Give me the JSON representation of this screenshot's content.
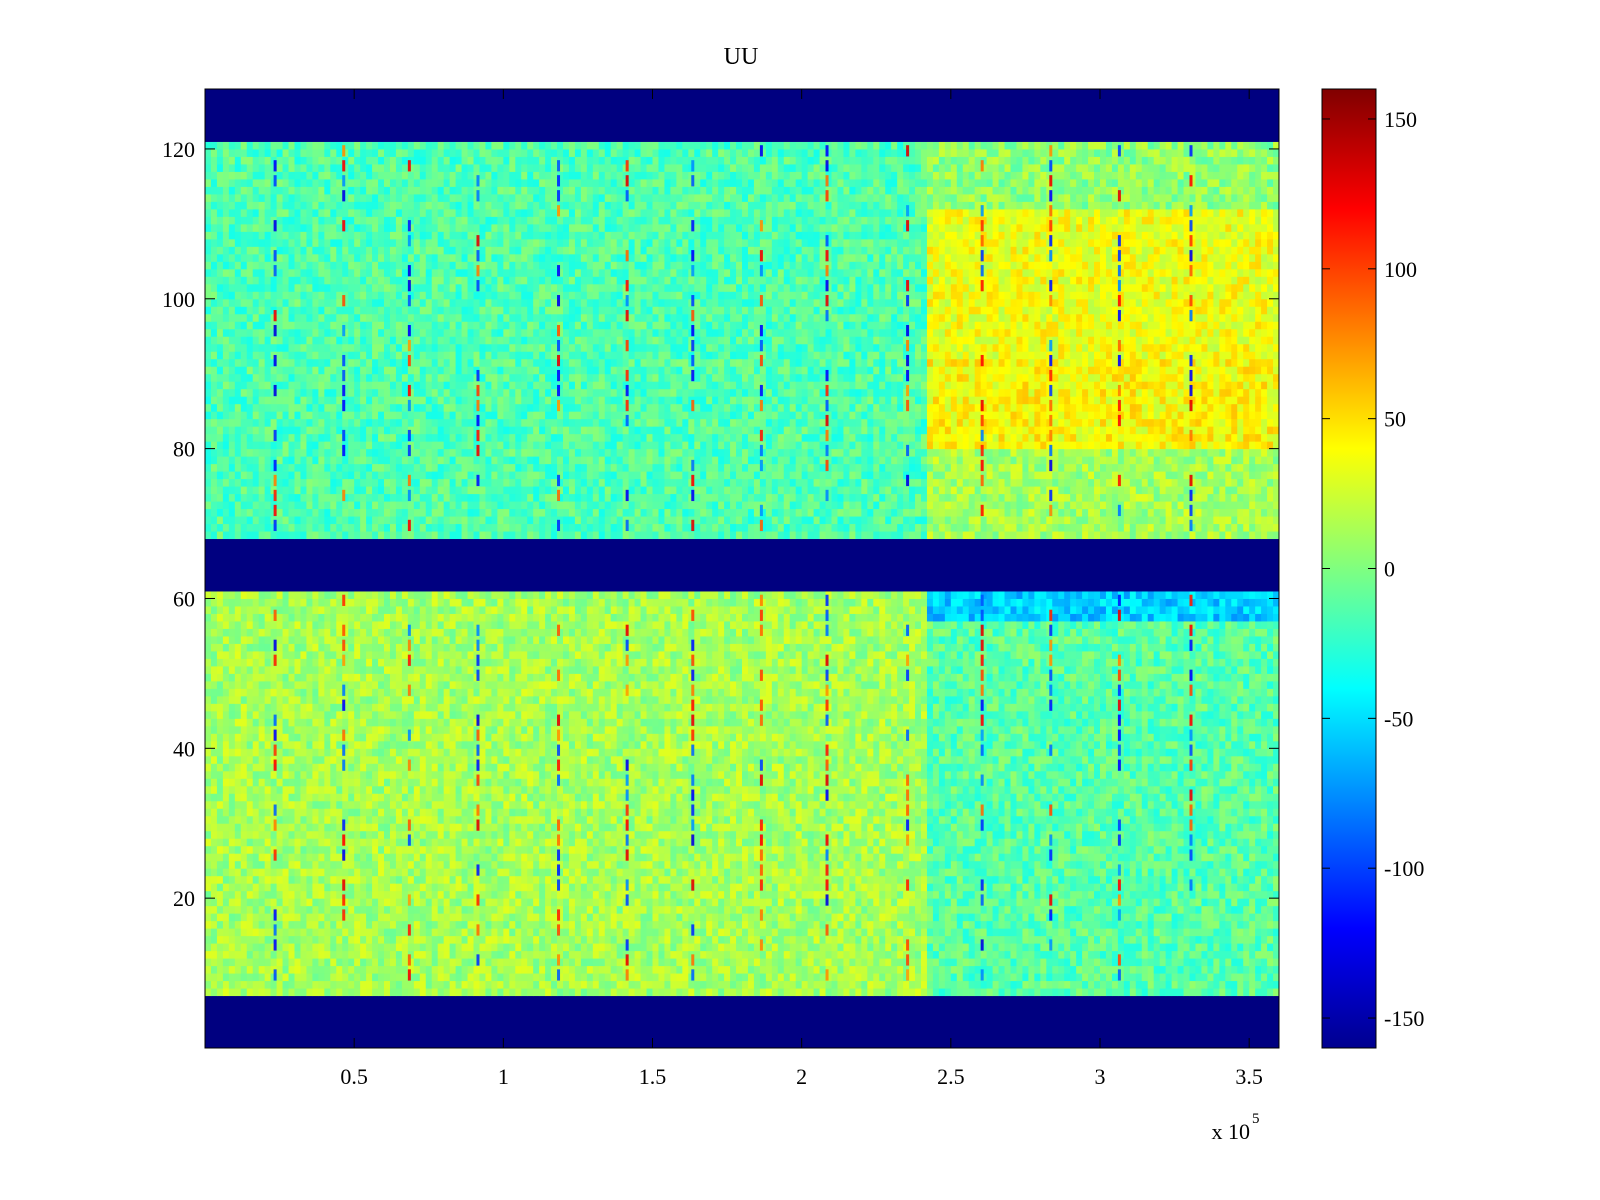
{
  "chart_data": {
    "type": "heatmap",
    "title": "UU",
    "xlabel": "",
    "ylabel": "",
    "x_multiplier_label": "x 10",
    "x_multiplier_exponent": "5",
    "xlim": [
      0,
      3.6
    ],
    "ylim": [
      0,
      128
    ],
    "x_ticks": [
      0.5,
      1,
      1.5,
      2,
      2.5,
      3,
      3.5
    ],
    "x_tick_labels": [
      "0.5",
      "1",
      "1.5",
      "2",
      "2.5",
      "3",
      "3.5"
    ],
    "y_ticks": [
      20,
      40,
      60,
      80,
      100,
      120
    ],
    "y_tick_labels": [
      "20",
      "40",
      "60",
      "80",
      "100",
      "120"
    ],
    "colormap": "jet",
    "colorbar": {
      "range": [
        -160,
        160
      ],
      "ticks": [
        150,
        100,
        50,
        0,
        -50,
        -100,
        -150
      ],
      "tick_labels": [
        "150",
        "100",
        "50",
        "0",
        "-50",
        "-100",
        "-150"
      ]
    },
    "masked_row_bands": [
      {
        "y_from": 0,
        "y_to": 7,
        "value": -160
      },
      {
        "y_from": 61,
        "y_to": 68,
        "value": -160
      },
      {
        "y_from": 121,
        "y_to": 128,
        "value": -160
      }
    ],
    "regions": [
      {
        "x_from": 0,
        "x_to": 2.42,
        "y_from": 68,
        "y_to": 121,
        "mean": -15
      },
      {
        "x_from": 2.42,
        "x_to": 3.6,
        "y_from": 92,
        "y_to": 112,
        "mean": 35
      },
      {
        "x_from": 2.42,
        "x_to": 3.6,
        "y_from": 80,
        "y_to": 92,
        "mean": 40
      },
      {
        "x_from": 2.42,
        "x_to": 3.6,
        "y_from": 68,
        "y_to": 80,
        "mean": 12
      },
      {
        "x_from": 2.42,
        "x_to": 3.6,
        "y_from": 112,
        "y_to": 121,
        "mean": 5
      },
      {
        "x_from": 0,
        "x_to": 2.42,
        "y_from": 7,
        "y_to": 61,
        "mean": 12
      },
      {
        "x_from": 2.42,
        "x_to": 3.6,
        "y_from": 7,
        "y_to": 61,
        "mean": -12
      },
      {
        "x_from": 2.42,
        "x_to": 3.6,
        "y_from": 57,
        "y_to": 61,
        "mean": -55
      }
    ],
    "stripe_x_positions": [
      0.23,
      0.46,
      0.68,
      0.91,
      1.18,
      1.41,
      1.63,
      1.86,
      2.08,
      2.35,
      2.6,
      2.83,
      3.06,
      3.3
    ]
  }
}
